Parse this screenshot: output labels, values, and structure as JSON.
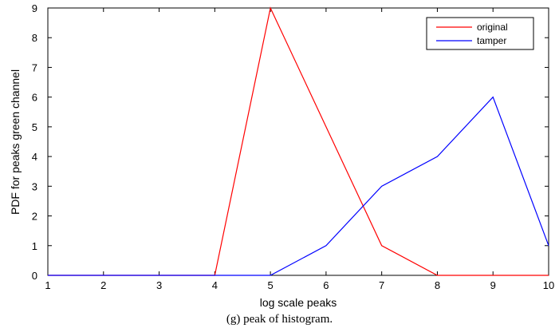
{
  "chart_data": {
    "type": "line",
    "xlabel": "log scale peaks",
    "ylabel": "PDF for peaks green channel",
    "xlim": [
      1,
      10
    ],
    "ylim": [
      0,
      9
    ],
    "xticks": [
      "1",
      "2",
      "3",
      "4",
      "5",
      "6",
      "7",
      "8",
      "9",
      "10"
    ],
    "yticks": [
      "0",
      "1",
      "2",
      "3",
      "4",
      "5",
      "6",
      "7",
      "8",
      "9"
    ],
    "x": [
      1,
      2,
      3,
      4,
      5,
      6,
      7,
      8,
      9,
      10
    ],
    "series": [
      {
        "name": "original",
        "color": "#ff0000",
        "values": [
          0,
          0,
          0,
          0,
          9,
          5,
          1,
          0,
          0,
          0
        ]
      },
      {
        "name": "tamper",
        "color": "#0000ff",
        "values": [
          0,
          0,
          0,
          0,
          0,
          1,
          3,
          4,
          6,
          1
        ]
      }
    ],
    "legend_position": "top-right",
    "grid": false
  },
  "caption": "(g) peak of histogram."
}
